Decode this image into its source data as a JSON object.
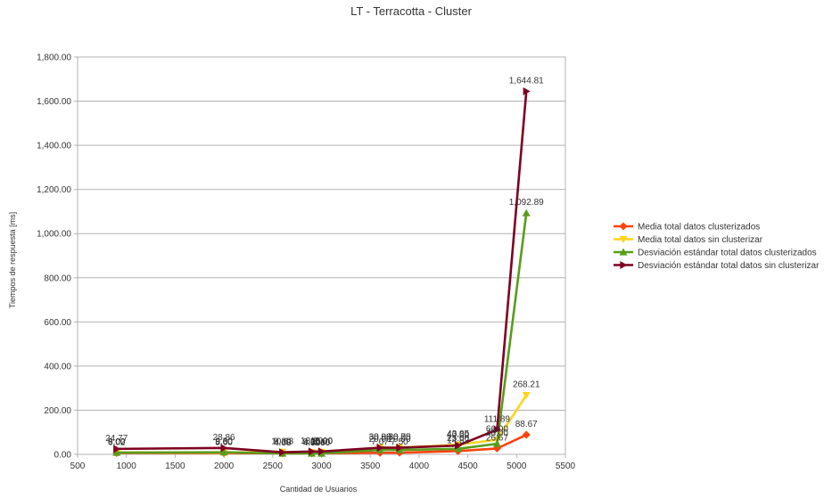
{
  "chart_data": {
    "type": "line",
    "title": "LT - Terracotta - Cluster",
    "xlabel": "Cantidad de Usuarios",
    "ylabel": "Tiempos de respuesta [ms]",
    "xlim": [
      500,
      5500
    ],
    "ylim": [
      0,
      1800
    ],
    "x_ticks": [
      "500",
      "1000",
      "1500",
      "2000",
      "2500",
      "3000",
      "3500",
      "4000",
      "4500",
      "5000",
      "5500"
    ],
    "y_ticks": [
      "0.00",
      "200.00",
      "400.00",
      "600.00",
      "800.00",
      "1,000.00",
      "1,200.00",
      "1,400.00",
      "1,600.00",
      "1,800.00"
    ],
    "grid": true,
    "legend_position": "right",
    "series": [
      {
        "name": "Media total datos clusterizados",
        "color": "#ff420e",
        "marker": "diamond",
        "x": [
          900,
          2000,
          2600,
          2900,
          3000,
          3600,
          3800,
          4400,
          4800,
          5100
        ],
        "values": [
          6.02,
          5.6,
          4.68,
          4.5,
          5.1,
          7.07,
          7.5,
          14.82,
          26.67,
          88.67
        ],
        "labels": [
          "6.02",
          "5.60",
          "4.68",
          "4.50",
          "5.10",
          "7.07",
          "7.50",
          "14.82",
          "26.67",
          "88.67"
        ]
      },
      {
        "name": "Media total datos sin clusterizar",
        "color": "#ffd320",
        "marker": "triangle-down",
        "x": [
          900,
          2000,
          2600,
          2900,
          3000,
          3600,
          3800,
          4400,
          4800,
          5100
        ],
        "values": [
          9.0,
          8.0,
          10.63,
          9.0,
          10.0,
          30.99,
          30.75,
          43.85,
          66.0,
          268.21
        ],
        "labels": [
          "9.00",
          "8.00",
          "10.63",
          "9.00",
          "10.00",
          "30.99",
          "30.75",
          "43.85",
          "66.00",
          "268.21"
        ]
      },
      {
        "name": "Desviación estándar total datos clusterizados",
        "color": "#579d1c",
        "marker": "triangle-up",
        "x": [
          900,
          2000,
          2600,
          2900,
          3000,
          3600,
          3800,
          4400,
          4800,
          5100
        ],
        "values": [
          8.0,
          9.5,
          4.0,
          4.0,
          4.0,
          20.0,
          20.0,
          25.0,
          48.0,
          1092.89
        ],
        "labels": [
          "8.00",
          "9.50",
          "4.00",
          "4.00",
          "4.00",
          "20.00",
          "20.00",
          "25.00",
          "48.00",
          "1,092.89"
        ]
      },
      {
        "name": "Desviación estándar total datos sin clusterizar",
        "color": "#7e0021",
        "marker": "triangle-right",
        "x": [
          900,
          2000,
          2600,
          2900,
          3000,
          3600,
          3800,
          4400,
          4800,
          5100
        ],
        "values": [
          24.77,
          28.86,
          9.3,
          13.0,
          13.0,
          30.0,
          30.0,
          40.0,
          111.89,
          1644.81
        ],
        "labels": [
          "24.77",
          "28.86",
          "9.30",
          "13.00",
          "13.00",
          "30.00",
          "30.00",
          "40.00",
          "111.89",
          "1,644.81"
        ]
      }
    ]
  }
}
